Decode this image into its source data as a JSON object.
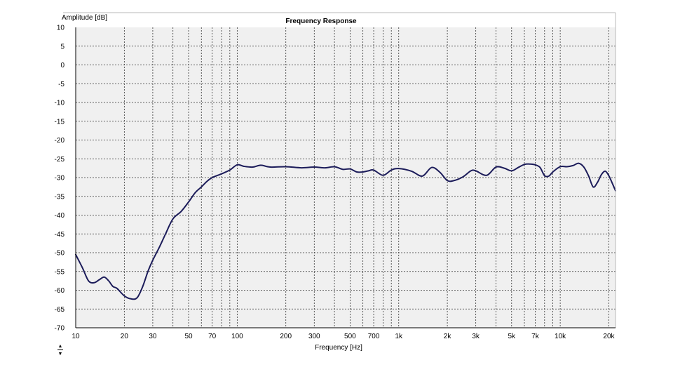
{
  "chart_data": {
    "type": "line",
    "title": "Frequency Response",
    "xlabel": "Frequency [Hz]",
    "ylabel": "Amplitude [dB]",
    "x_scale": "log",
    "xlim": [
      10,
      22000
    ],
    "ylim": [
      -70,
      10
    ],
    "grid": true,
    "legend": "none",
    "y_ticks": [
      10,
      5,
      0,
      -5,
      -10,
      -15,
      -20,
      -25,
      -30,
      -35,
      -40,
      -45,
      -50,
      -55,
      -60,
      -65,
      -70
    ],
    "x_tick_labels": [
      {
        "value": 10,
        "label": "10"
      },
      {
        "value": 20,
        "label": "20"
      },
      {
        "value": 30,
        "label": "30"
      },
      {
        "value": 50,
        "label": "50"
      },
      {
        "value": 70,
        "label": "70"
      },
      {
        "value": 100,
        "label": "100"
      },
      {
        "value": 200,
        "label": "200"
      },
      {
        "value": 300,
        "label": "300"
      },
      {
        "value": 500,
        "label": "500"
      },
      {
        "value": 700,
        "label": "700"
      },
      {
        "value": 1000,
        "label": "1k"
      },
      {
        "value": 2000,
        "label": "2k"
      },
      {
        "value": 3000,
        "label": "3k"
      },
      {
        "value": 5000,
        "label": "5k"
      },
      {
        "value": 7000,
        "label": "7k"
      },
      {
        "value": 10000,
        "label": "10k"
      },
      {
        "value": 20000,
        "label": "20k"
      }
    ],
    "x_gridlines": [
      10,
      20,
      30,
      40,
      50,
      60,
      70,
      80,
      90,
      100,
      200,
      300,
      400,
      500,
      600,
      700,
      800,
      900,
      1000,
      2000,
      3000,
      4000,
      5000,
      6000,
      7000,
      8000,
      9000,
      10000,
      20000
    ],
    "series": [
      {
        "color": "#1c1c5a",
        "x": [
          10,
          11,
          12,
          13,
          14,
          15,
          16,
          17,
          18,
          20,
          22,
          24,
          26,
          28,
          30,
          33,
          36,
          40,
          45,
          50,
          55,
          60,
          65,
          70,
          80,
          90,
          100,
          110,
          125,
          140,
          160,
          200,
          250,
          300,
          350,
          400,
          450,
          500,
          550,
          600,
          650,
          700,
          800,
          900,
          1000,
          1200,
          1400,
          1600,
          1800,
          2000,
          2200,
          2500,
          2800,
          3000,
          3500,
          4000,
          4500,
          5000,
          5500,
          6000,
          6500,
          7000,
          7500,
          8000,
          8500,
          9000,
          10000,
          11000,
          12000,
          13000,
          14000,
          15000,
          16000,
          17000,
          18000,
          19000,
          20000,
          21000,
          22000
        ],
        "values": [
          -50.5,
          -54,
          -57.5,
          -58,
          -57.2,
          -56.5,
          -57.5,
          -59,
          -59.5,
          -61.5,
          -62.3,
          -62,
          -59,
          -55,
          -52,
          -48.5,
          -45,
          -41,
          -39,
          -36.5,
          -34,
          -32.5,
          -31,
          -30,
          -29,
          -28,
          -26.6,
          -27,
          -27.2,
          -26.7,
          -27.2,
          -27.1,
          -27.4,
          -27.2,
          -27.4,
          -27.1,
          -27.8,
          -27.7,
          -28.5,
          -28.5,
          -28.2,
          -28,
          -29.4,
          -28,
          -27.6,
          -28.3,
          -29.6,
          -27.3,
          -28.6,
          -30.8,
          -30.8,
          -29.8,
          -28.2,
          -28.2,
          -29.4,
          -27.2,
          -27.5,
          -28.2,
          -27.3,
          -26.5,
          -26.4,
          -26.6,
          -27.3,
          -29.5,
          -29.6,
          -28.5,
          -27.1,
          -27.1,
          -26.8,
          -26.2,
          -27.2,
          -29.6,
          -32.5,
          -31.3,
          -29.2,
          -28.3,
          -29.5,
          -31.5,
          -33.5
        ]
      }
    ]
  },
  "scroll_arrows": {
    "up": "▲",
    "down": "▼"
  }
}
